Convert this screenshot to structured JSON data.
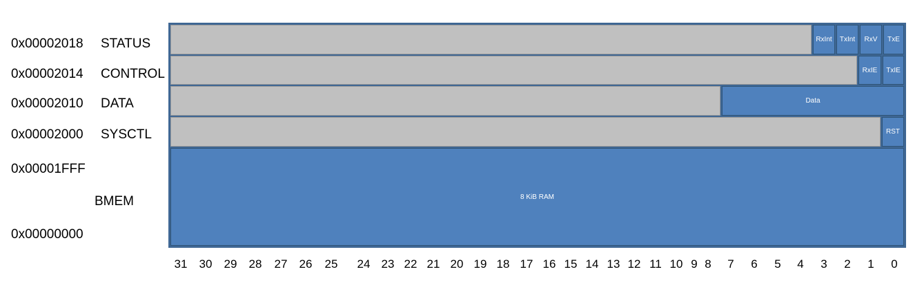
{
  "registers": [
    {
      "address": "0x00002018",
      "name": "STATUS",
      "fields": [
        "RxInt",
        "TxInt",
        "RxV",
        "TxE"
      ]
    },
    {
      "address": "0x00002014",
      "name": "CONTROL",
      "fields": [
        "RxIE",
        "TxIE"
      ]
    },
    {
      "address": "0x00002010",
      "name": "DATA",
      "fields": [
        "Data"
      ]
    },
    {
      "address": "0x00002000",
      "name": "SYSCTL",
      "fields": [
        "RST"
      ]
    }
  ],
  "memory": {
    "top_address": "0x00001FFF",
    "name": "BMEM",
    "bottom_address": "0x00000000",
    "label": "8 KiB RAM"
  },
  "bit_labels": [
    "31",
    "30",
    "29",
    "28",
    "27",
    "26",
    "25",
    "24",
    "23",
    "22",
    "21",
    "20",
    "19",
    "18",
    "17",
    "16",
    "15",
    "14",
    "13",
    "12",
    "11",
    "10",
    "9",
    "8",
    "7",
    "6",
    "5",
    "4",
    "3",
    "2",
    "1",
    "0"
  ],
  "colors": {
    "field": "#4f81bd",
    "reserved": "#c0c0c0",
    "frame": "#3f6794"
  }
}
